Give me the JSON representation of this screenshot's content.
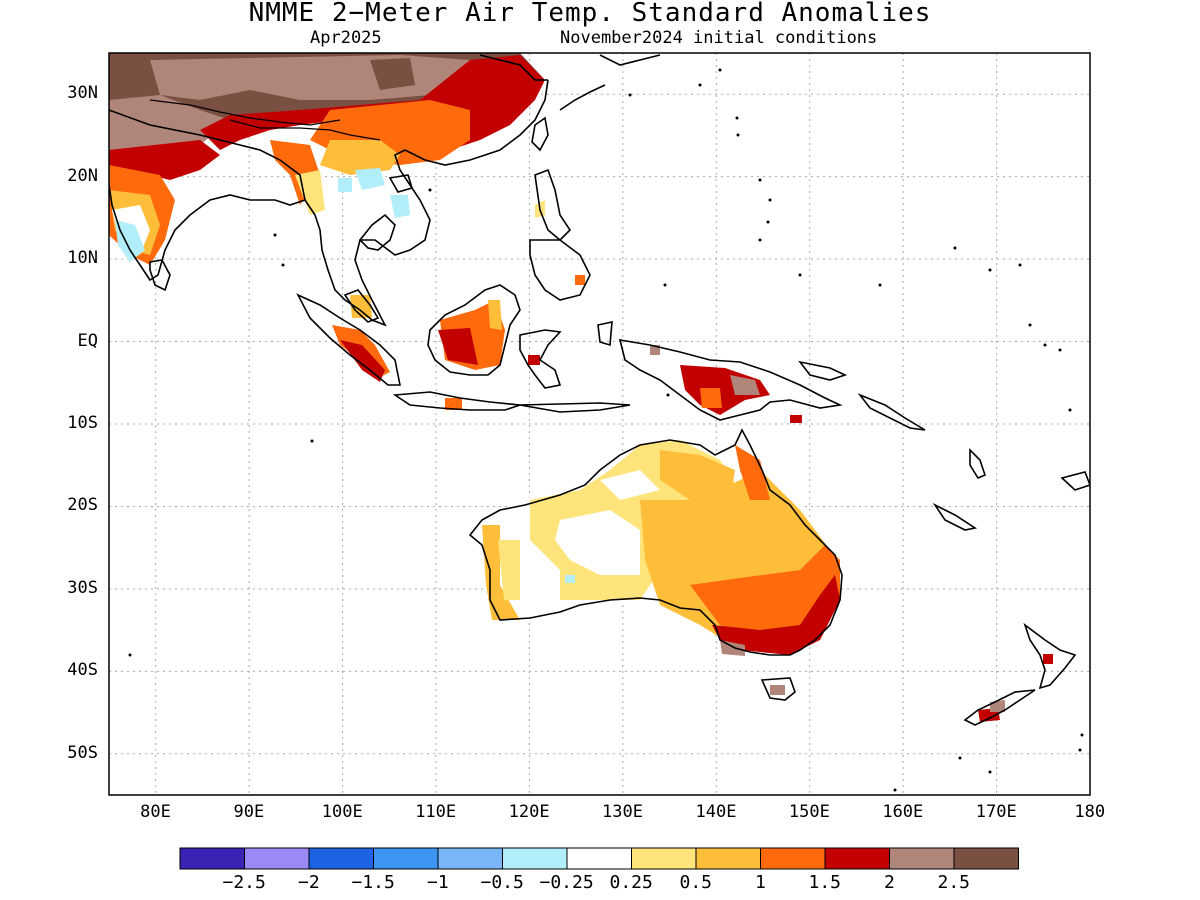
{
  "title": "NMME 2−Meter Air Temp. Standard Anomalies",
  "subtitle_month": "Apr2025",
  "subtitle_init": "November2024 initial conditions",
  "lat_ticks": [
    "30N",
    "20N",
    "10N",
    "EQ",
    "10S",
    "20S",
    "30S",
    "40S",
    "50S"
  ],
  "lon_ticks": [
    "80E",
    "90E",
    "100E",
    "110E",
    "120E",
    "130E",
    "140E",
    "150E",
    "160E",
    "170E",
    "180"
  ],
  "colorbar": {
    "colors": [
      "#3a22b4",
      "#9b89f5",
      "#1d63e3",
      "#3d95f2",
      "#78b6f7",
      "#b2eefa",
      "#ffffff",
      "#ffe47c",
      "#ffbe3a",
      "#ff6a0c",
      "#c20000",
      "#b0857a",
      "#7a5042"
    ],
    "labels": [
      "−2.5",
      "−2",
      "−1.5",
      "−1",
      "−0.5",
      "−0.25",
      "0.25",
      "0.5",
      "1",
      "1.5",
      "2",
      "2.5"
    ]
  },
  "legend_colors": {
    "land_outline": "#000000",
    "grid": "#aaaaaa"
  }
}
